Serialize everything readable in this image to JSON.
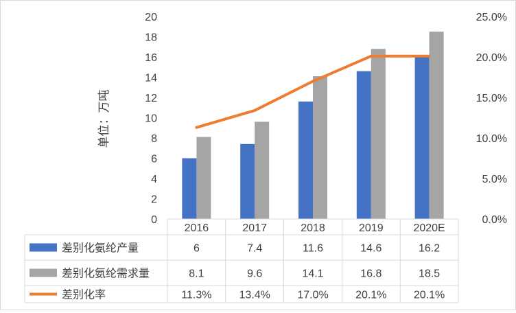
{
  "chart_data": {
    "type": "bar",
    "categories": [
      "2016",
      "2017",
      "2018",
      "2019",
      "2020E"
    ],
    "y_left": {
      "label": "单位：万吨",
      "ylim": [
        0,
        20
      ],
      "ticks": [
        "0",
        "2",
        "4",
        "6",
        "8",
        "10",
        "12",
        "14",
        "16",
        "18",
        "20"
      ]
    },
    "y_right": {
      "ylim": [
        0,
        0.25
      ],
      "ticks": [
        "0.0%",
        "5.0%",
        "10.0%",
        "15.0%",
        "20.0%",
        "25.0%"
      ]
    },
    "series": [
      {
        "name": "差别化氨纶产量",
        "kind": "bar",
        "axis": "left",
        "color": "#4472c4",
        "values": [
          6,
          7.4,
          11.6,
          14.6,
          16.2
        ],
        "labels": [
          "6",
          "7.4",
          "11.6",
          "14.6",
          "16.2"
        ]
      },
      {
        "name": "差别化氨纶需求量",
        "kind": "bar",
        "axis": "left",
        "color": "#a5a5a5",
        "values": [
          8.1,
          9.6,
          14.1,
          16.8,
          18.5
        ],
        "labels": [
          "8.1",
          "9.6",
          "14.1",
          "16.8",
          "18.5"
        ]
      },
      {
        "name": "差别化率",
        "kind": "line",
        "axis": "right",
        "color": "#ed7d31",
        "values": [
          0.113,
          0.134,
          0.17,
          0.201,
          0.201
        ],
        "labels": [
          "11.3%",
          "13.4%",
          "17.0%",
          "20.1%",
          "20.1%"
        ]
      }
    ],
    "grid": false,
    "data_table": true
  }
}
